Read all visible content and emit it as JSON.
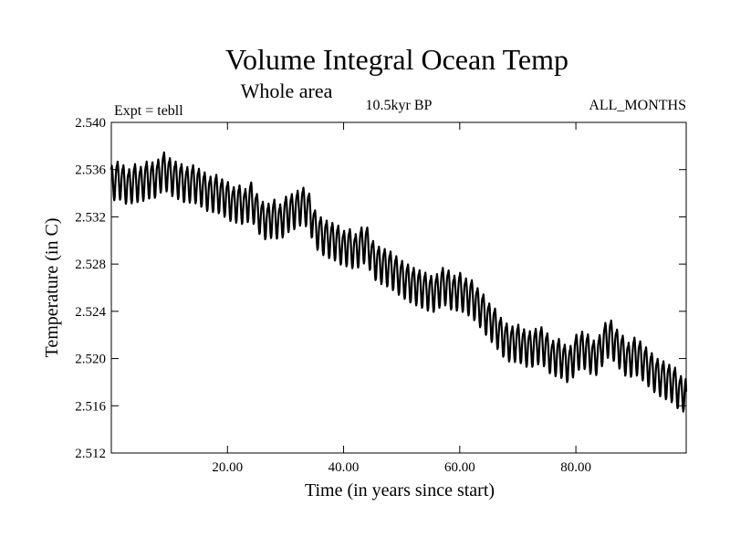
{
  "chart_data": {
    "type": "line",
    "title": "Volume Integral Ocean Temp",
    "subtitle": "Whole area",
    "annotations": {
      "left": "Expt = tebll",
      "center": "10.5kyr BP",
      "right": "ALL_MONTHS"
    },
    "xlabel": "Time (in years since start)",
    "ylabel": "Temperature (in C)",
    "xlim": [
      0,
      99
    ],
    "ylim": [
      2.512,
      2.54
    ],
    "xticks": [
      20,
      40,
      60,
      80
    ],
    "xtick_labels": [
      "20.00",
      "40.00",
      "60.00",
      "80.00"
    ],
    "yticks": [
      2.512,
      2.516,
      2.52,
      2.524,
      2.528,
      2.532,
      2.536,
      2.54
    ],
    "ytick_labels": [
      "2.512",
      "2.516",
      "2.520",
      "2.524",
      "2.528",
      "2.532",
      "2.536",
      "2.540"
    ],
    "series": [
      {
        "name": "Volume Integral Ocean Temp",
        "color": "#000000",
        "x": [
          0,
          1,
          2,
          3,
          4,
          5,
          6,
          7,
          8,
          9,
          10,
          11,
          12,
          13,
          14,
          15,
          16,
          17,
          18,
          19,
          20,
          21,
          22,
          23,
          24,
          25,
          26,
          27,
          28,
          29,
          30,
          31,
          32,
          33,
          34,
          35,
          36,
          37,
          38,
          39,
          40,
          41,
          42,
          43,
          44,
          45,
          46,
          47,
          48,
          49,
          50,
          51,
          52,
          53,
          54,
          55,
          56,
          57,
          58,
          59,
          60,
          61,
          62,
          63,
          64,
          65,
          66,
          67,
          68,
          69,
          70,
          71,
          72,
          73,
          74,
          75,
          76,
          77,
          78,
          79,
          80,
          81,
          82,
          83,
          84,
          85,
          86,
          87,
          88,
          89,
          90,
          91,
          92,
          93,
          94,
          95,
          96,
          97,
          98,
          99
        ],
        "values": [
          2.5348,
          2.5352,
          2.5349,
          2.5345,
          2.535,
          2.5347,
          2.5352,
          2.5351,
          2.5353,
          2.536,
          2.5355,
          2.5352,
          2.535,
          2.5347,
          2.5349,
          2.5346,
          2.5343,
          2.5339,
          2.5341,
          2.5337,
          2.5335,
          2.533,
          2.5332,
          2.5328,
          2.5335,
          2.5325,
          2.5318,
          2.5316,
          2.532,
          2.5315,
          2.5322,
          2.5324,
          2.5327,
          2.533,
          2.5326,
          2.5311,
          2.5305,
          2.5302,
          2.53,
          2.5298,
          2.5293,
          2.5295,
          2.529,
          2.5296,
          2.5297,
          2.5285,
          2.528,
          2.5278,
          2.5276,
          2.5272,
          2.5268,
          2.5265,
          2.5262,
          2.526,
          2.5258,
          2.5255,
          2.5256,
          2.5262,
          2.526,
          2.5255,
          2.5258,
          2.5253,
          2.5252,
          2.5245,
          2.524,
          2.5232,
          2.5228,
          2.522,
          2.5215,
          2.5212,
          2.5214,
          2.521,
          2.5208,
          2.521,
          2.5212,
          2.5207,
          2.52,
          2.5202,
          2.5197,
          2.5195,
          2.5205,
          2.5208,
          2.5206,
          2.52,
          2.5204,
          2.5215,
          2.5218,
          2.521,
          2.5205,
          2.5198,
          2.5203,
          2.52,
          2.5195,
          2.519,
          2.5185,
          2.5183,
          2.518,
          2.5178,
          2.517,
          2.5172
        ]
      }
    ]
  }
}
